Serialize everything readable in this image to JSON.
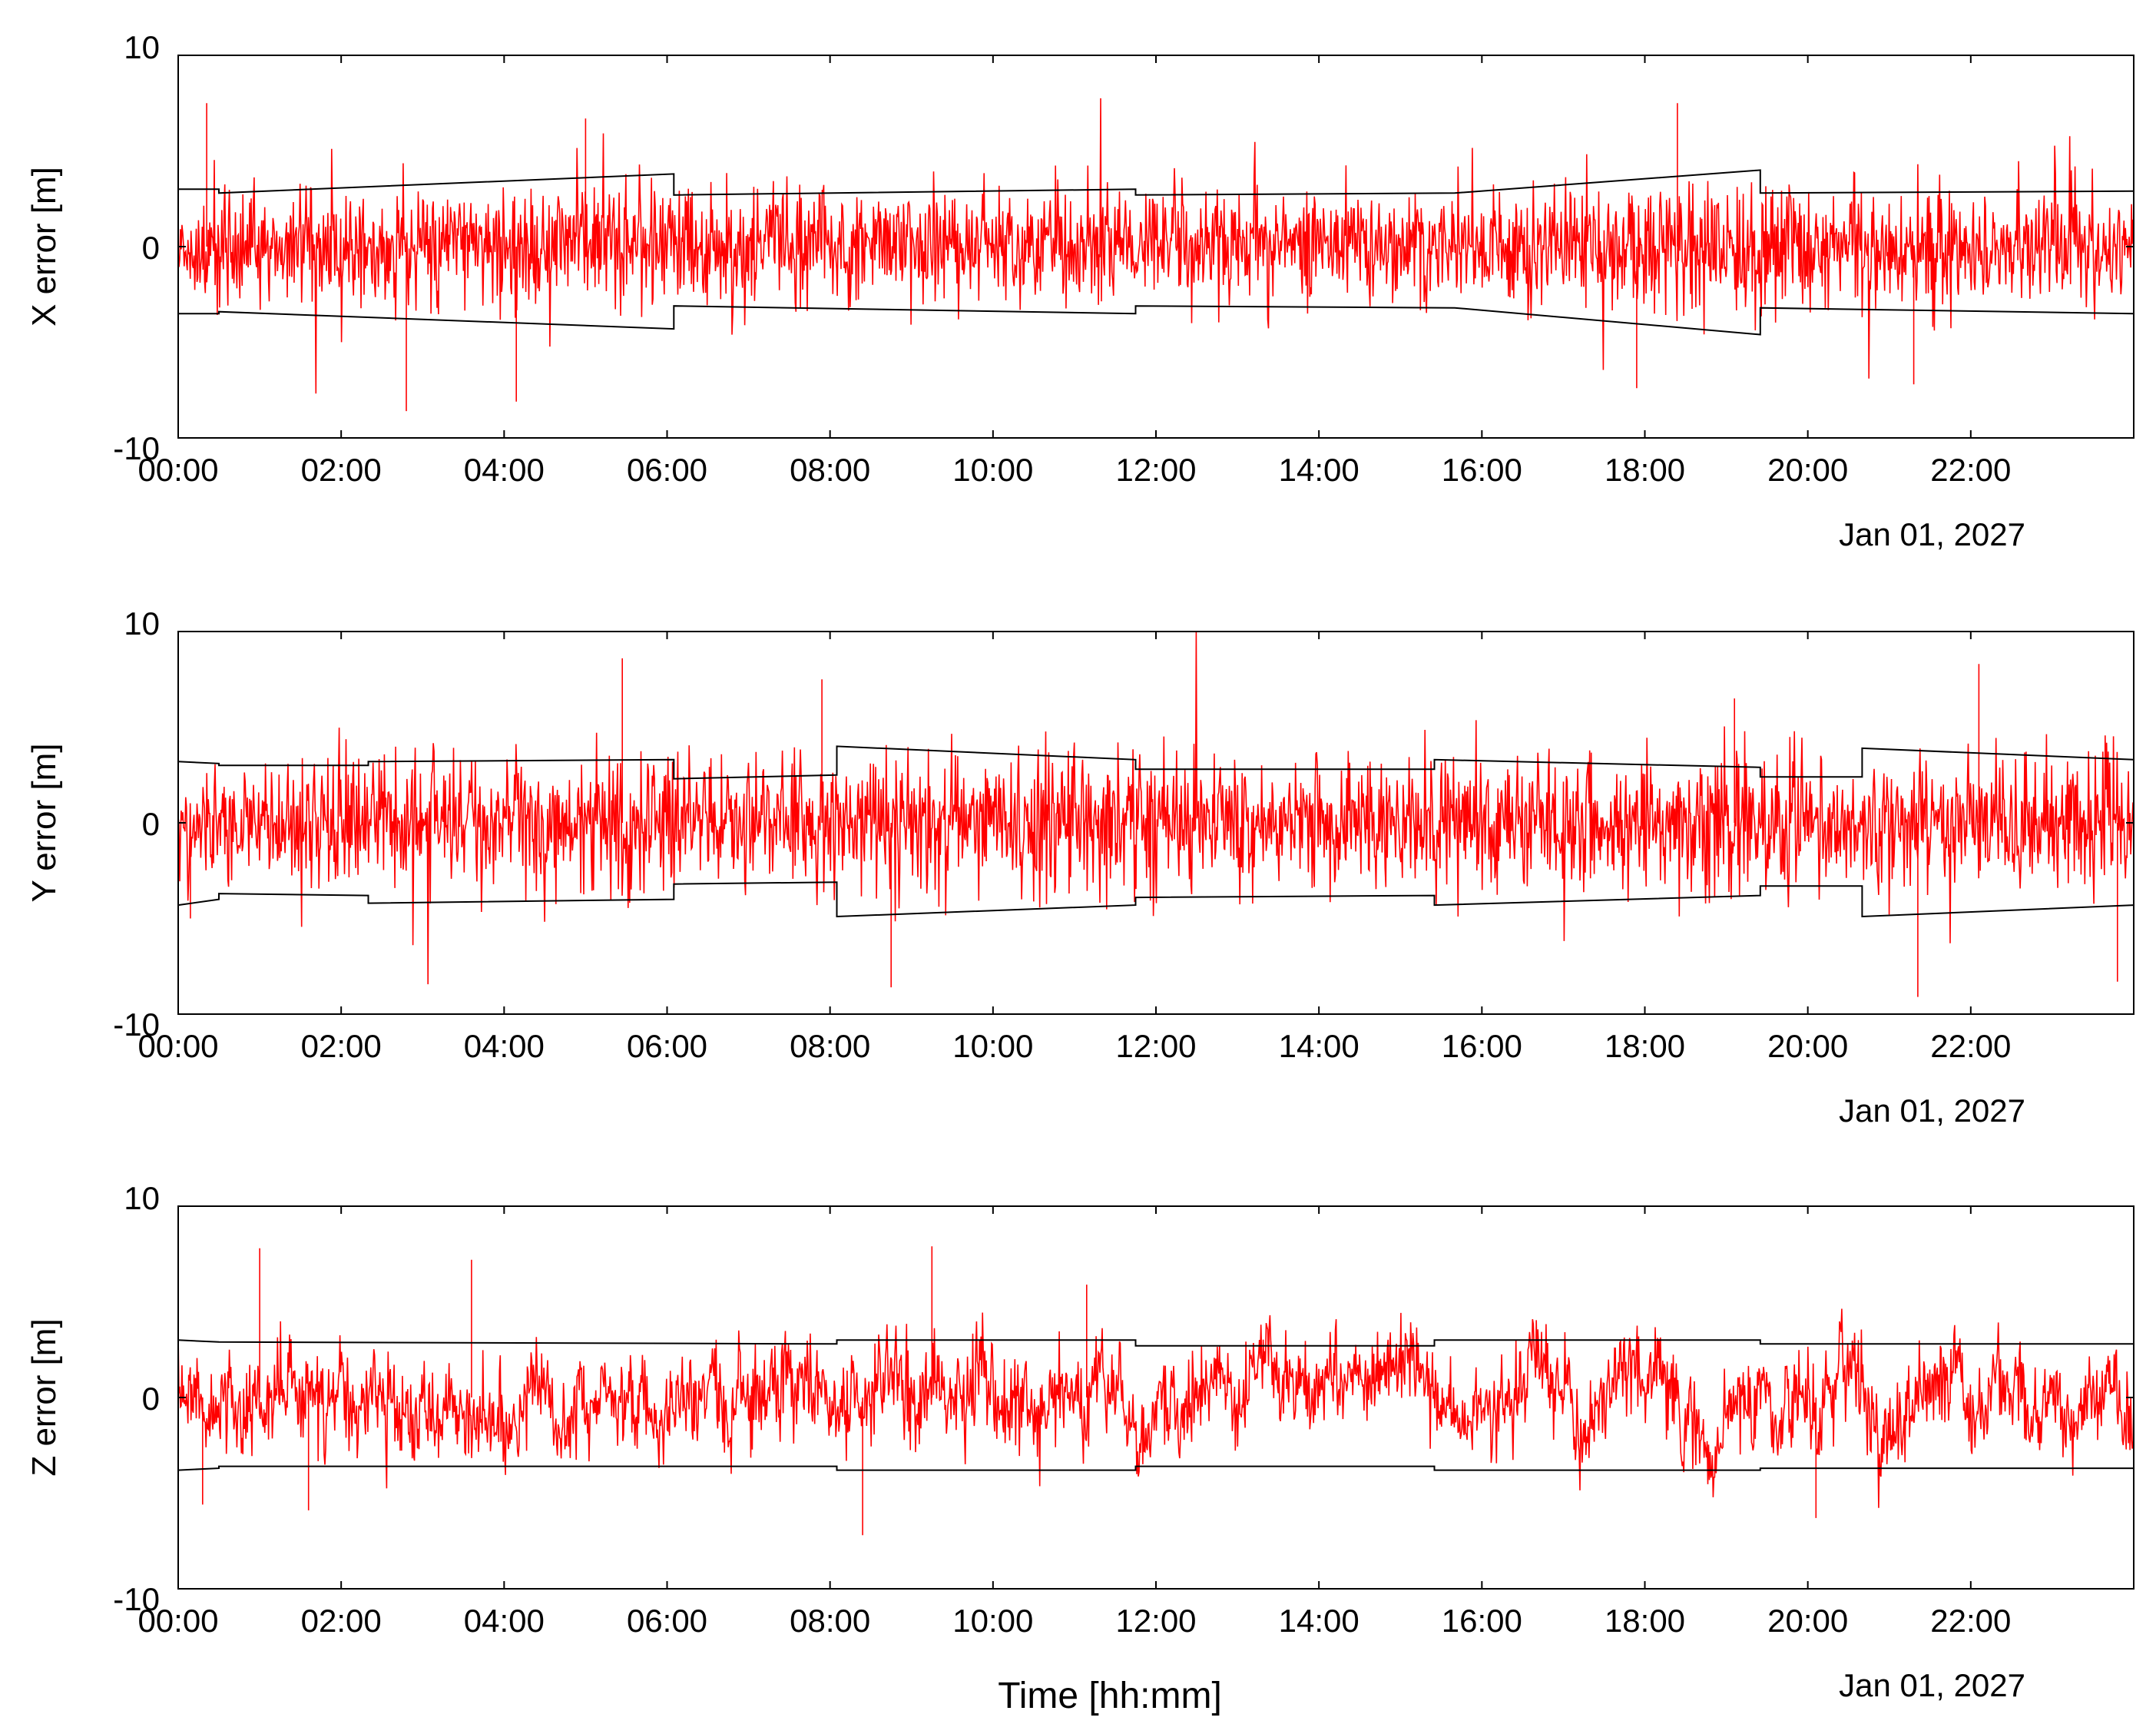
{
  "colors": {
    "error_series": "#ff0000",
    "bound_series": "#000000",
    "frame": "#000000",
    "background": "#ffffff"
  },
  "xlabel": "Time [hh:mm]",
  "date_label": "Jan 01, 2027",
  "chart_data": [
    {
      "type": "line",
      "ylabel": "X error [m]",
      "ylim": [
        -10,
        10
      ],
      "yticks": [
        -10,
        0,
        10
      ],
      "xlim": [
        "00:00",
        "24:00"
      ],
      "xticks": [
        "00:00",
        "02:00",
        "04:00",
        "06:00",
        "08:00",
        "10:00",
        "12:00",
        "14:00",
        "16:00",
        "18:00",
        "20:00",
        "22:00"
      ],
      "grid": false,
      "noise": {
        "sigma": [
          1.45,
          1.55,
          1.6,
          1.55,
          1.45,
          1.45,
          1.5,
          1.55,
          1.6,
          1.75,
          1.55,
          1.5
        ],
        "extremes": [
          [
            0.0,
            -10.0
          ],
          [
            0.35,
            7.5
          ],
          [
            2.8,
            -8.6
          ],
          [
            4.15,
            -8.1
          ],
          [
            5.0,
            6.7
          ],
          [
            18.4,
            7.5
          ],
          [
            17.9,
            -7.4
          ],
          [
            21.3,
            -7.2
          ]
        ]
      },
      "series": [
        {
          "values_estimated": true,
          "x": [
            "00:00",
            "00:30",
            "00:30",
            "06:05",
            "06:05",
            "11:45",
            "11:45",
            "15:40",
            "15:40",
            "19:25",
            "19:25",
            "24:00"
          ],
          "y": [
            3.0,
            3.0,
            2.8,
            3.8,
            2.7,
            3.0,
            2.7,
            2.8,
            2.8,
            4.0,
            2.8,
            2.9
          ]
        },
        {
          "values_estimated": true,
          "x": [
            "00:00",
            "00:30",
            "00:30",
            "06:05",
            "06:05",
            "11:45",
            "11:45",
            "15:40",
            "15:40",
            "19:25",
            "19:25",
            "24:00"
          ],
          "y": [
            -3.5,
            -3.5,
            -3.4,
            -4.3,
            -3.1,
            -3.5,
            -3.1,
            -3.2,
            -3.2,
            -4.6,
            -3.2,
            -3.5
          ]
        }
      ]
    },
    {
      "type": "line",
      "ylabel": "Y error [m]",
      "ylim": [
        -10,
        10
      ],
      "yticks": [
        -10,
        0,
        10
      ],
      "xlim": [
        "00:00",
        "24:00"
      ],
      "xticks": [
        "00:00",
        "02:00",
        "04:00",
        "06:00",
        "08:00",
        "10:00",
        "12:00",
        "14:00",
        "16:00",
        "18:00",
        "20:00",
        "22:00"
      ],
      "grid": false,
      "noise": {
        "sigma": [
          1.6,
          1.7,
          1.75,
          1.6,
          1.9,
          1.85,
          1.6,
          1.6,
          1.7,
          1.75,
          1.6,
          1.9
        ],
        "extremes": [
          [
            5.45,
            8.6
          ],
          [
            8.75,
            -8.6
          ],
          [
            7.9,
            7.5
          ],
          [
            21.35,
            -9.1
          ],
          [
            22.1,
            8.3
          ],
          [
            23.8,
            -8.3
          ],
          [
            0.15,
            -5.0
          ],
          [
            19.1,
            6.5
          ]
        ]
      },
      "series": [
        {
          "values_estimated": true,
          "x": [
            "00:00",
            "00:30",
            "00:30",
            "02:20",
            "02:20",
            "06:05",
            "06:05",
            "08:05",
            "08:05",
            "11:45",
            "11:45",
            "15:25",
            "15:25",
            "19:25",
            "19:25",
            "20:40",
            "20:40",
            "24:00"
          ],
          "y": [
            3.2,
            3.1,
            3.0,
            3.0,
            3.2,
            3.3,
            2.3,
            2.5,
            4.0,
            3.3,
            2.8,
            2.8,
            3.3,
            2.9,
            2.4,
            2.4,
            3.9,
            3.3
          ]
        },
        {
          "values_estimated": true,
          "x": [
            "00:00",
            "00:30",
            "00:30",
            "02:20",
            "02:20",
            "06:05",
            "06:05",
            "08:05",
            "08:05",
            "11:45",
            "11:45",
            "15:25",
            "15:25",
            "19:25",
            "19:25",
            "20:40",
            "20:40",
            "24:00"
          ],
          "y": [
            -4.3,
            -4.0,
            -3.7,
            -3.8,
            -4.2,
            -4.0,
            -3.2,
            -3.1,
            -4.9,
            -4.3,
            -3.9,
            -3.8,
            -4.3,
            -3.8,
            -3.3,
            -3.3,
            -4.9,
            -4.3
          ]
        }
      ]
    },
    {
      "type": "line",
      "ylabel": "Z error [m]",
      "ylim": [
        -10,
        10
      ],
      "yticks": [
        -10,
        0,
        10
      ],
      "xlim": [
        "00:00",
        "24:00"
      ],
      "xticks": [
        "00:00",
        "02:00",
        "04:00",
        "06:00",
        "08:00",
        "10:00",
        "12:00",
        "14:00",
        "16:00",
        "18:00",
        "20:00",
        "22:00"
      ],
      "grid": false,
      "noise": {
        "sigma": [
          1.1,
          1.1,
          1.05,
          1.05,
          1.15,
          1.1,
          1.05,
          1.05,
          1.05,
          1.05,
          1.05,
          1.05
        ],
        "walk_rho": 0.94,
        "walk_sigma": 1.7,
        "extremes": [
          [
            1.0,
            7.8
          ],
          [
            3.6,
            7.2
          ],
          [
            9.25,
            7.9
          ],
          [
            11.15,
            5.9
          ],
          [
            8.4,
            -7.2
          ],
          [
            0.3,
            -5.6
          ],
          [
            1.6,
            -5.9
          ],
          [
            20.1,
            -6.3
          ]
        ]
      },
      "series": [
        {
          "values_estimated": true,
          "x": [
            "00:00",
            "00:30",
            "00:30",
            "08:05",
            "08:05",
            "11:45",
            "11:45",
            "15:25",
            "15:25",
            "19:25",
            "19:25",
            "24:00"
          ],
          "y": [
            3.0,
            2.9,
            2.9,
            2.8,
            3.0,
            3.0,
            2.7,
            2.7,
            3.0,
            3.0,
            2.8,
            2.8
          ]
        },
        {
          "values_estimated": true,
          "x": [
            "00:00",
            "00:30",
            "00:30",
            "08:05",
            "08:05",
            "11:45",
            "11:45",
            "15:25",
            "15:25",
            "19:25",
            "19:25",
            "24:00"
          ],
          "y": [
            -3.8,
            -3.7,
            -3.6,
            -3.6,
            -3.8,
            -3.8,
            -3.6,
            -3.6,
            -3.8,
            -3.8,
            -3.7,
            -3.7
          ]
        }
      ]
    }
  ]
}
